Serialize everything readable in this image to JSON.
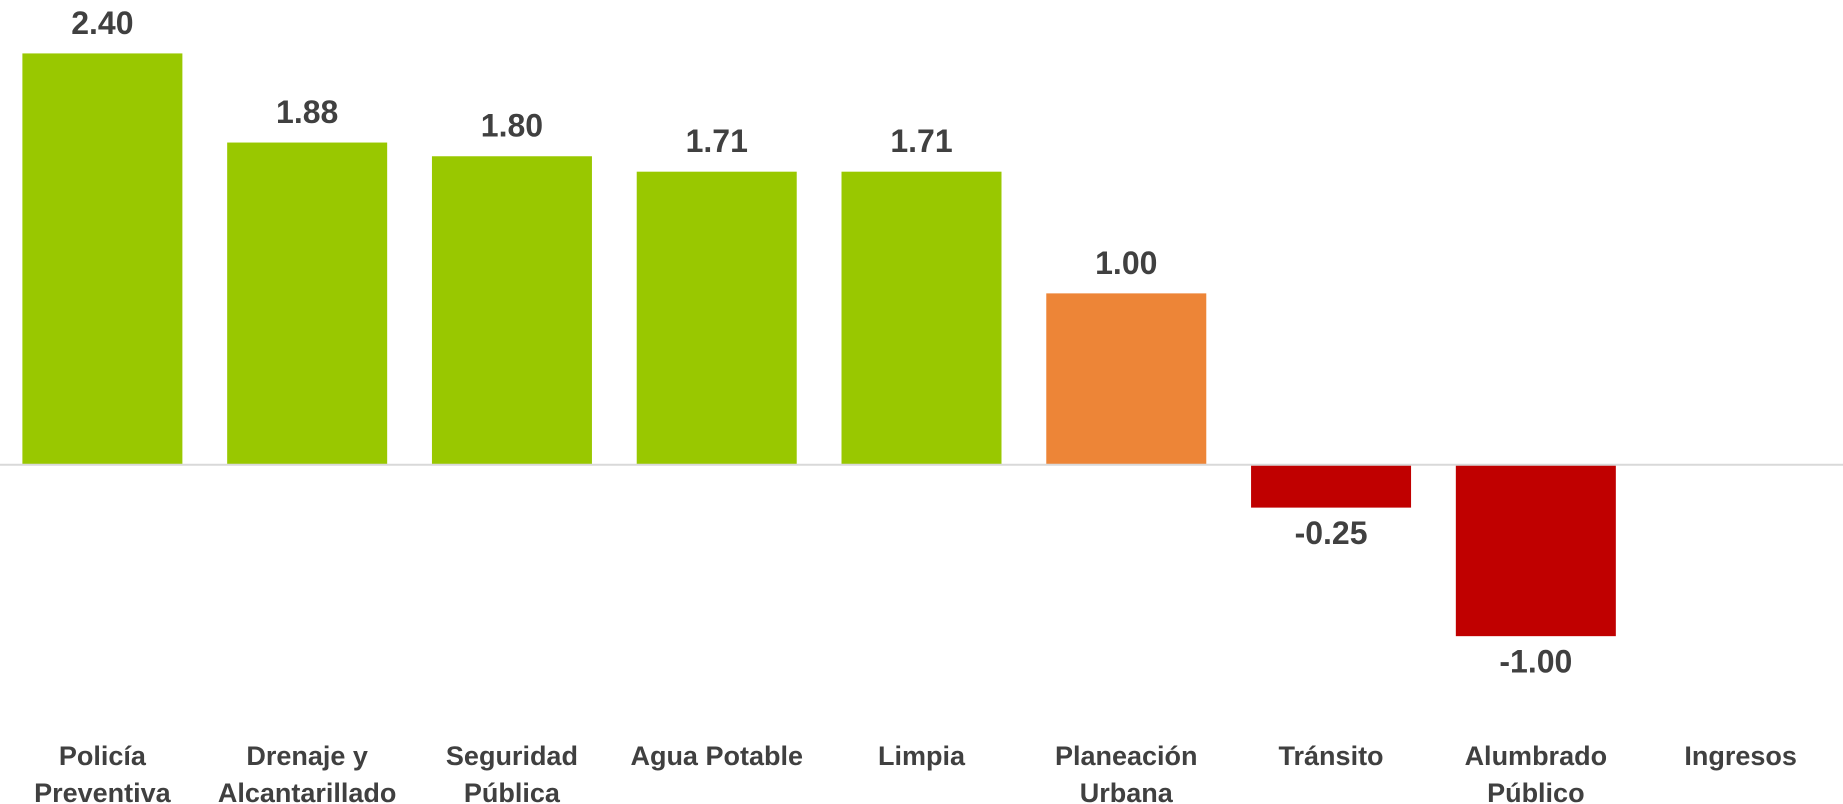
{
  "chart_data": {
    "type": "bar",
    "categories": [
      "Policía Preventiva",
      "Drenaje y Alcantarillado",
      "Seguridad Pública",
      "Agua Potable",
      "Limpia",
      "Planeación Urbana",
      "Tránsito",
      "Alumbrado Público",
      "Ingresos"
    ],
    "values": [
      2.4,
      1.88,
      1.8,
      1.71,
      1.71,
      1.0,
      -0.25,
      -1.0,
      null
    ],
    "value_labels": [
      "2.40",
      "1.88",
      "1.80",
      "1.71",
      "1.71",
      "1.00",
      "-0.25",
      "-1.00",
      null
    ],
    "colors": [
      "#99c800",
      "#99c800",
      "#99c800",
      "#99c800",
      "#99c800",
      "#ed8537",
      "#c00000",
      "#c00000",
      null
    ],
    "ylim": [
      -1.6,
      2.7
    ]
  }
}
